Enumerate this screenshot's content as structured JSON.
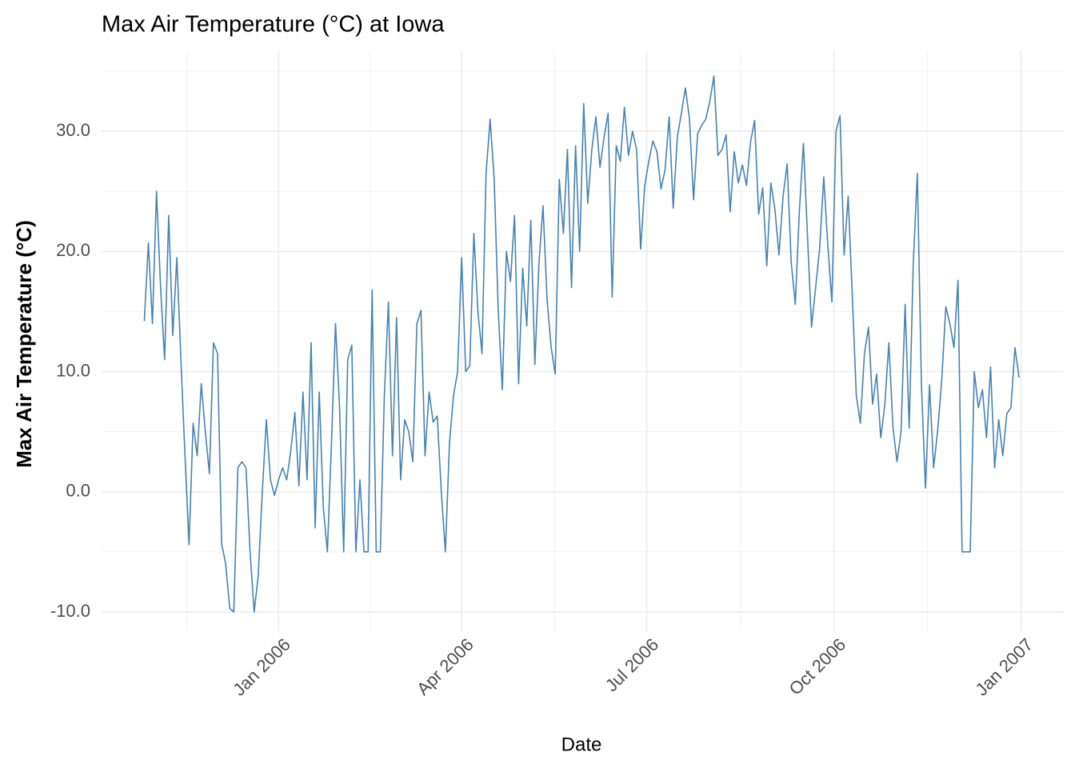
{
  "chart_data": {
    "type": "line",
    "title": "Max Air Temperature (°C) at Iowa",
    "x_label": "Date",
    "y_label": "Max Air Temperature (°C)",
    "color": "#4682b4",
    "grid": true,
    "xlim": [
      "2005-10-06",
      "2007-01-22"
    ],
    "xticks": [
      {
        "value": "2006-01-01",
        "label": "Jan 2006"
      },
      {
        "value": "2006-04-01",
        "label": "Apr 2006"
      },
      {
        "value": "2006-07-01",
        "label": "Jul 2006"
      },
      {
        "value": "2006-10-01",
        "label": "Oct 2006"
      },
      {
        "value": "2007-01-01",
        "label": "Jan 2007"
      }
    ],
    "ylim": [
      -11.6,
      35
    ],
    "yticks": [
      {
        "value": -10,
        "label": "-10.0"
      },
      {
        "value": 0,
        "label": "0.0"
      },
      {
        "value": 10,
        "label": "10.0"
      },
      {
        "value": 20,
        "label": "20.0"
      },
      {
        "value": 30,
        "label": "30.0"
      }
    ],
    "x": [
      "2005-10-27",
      "2005-10-29",
      "2005-10-31",
      "2005-11-02",
      "2005-11-04",
      "2005-11-06",
      "2005-11-08",
      "2005-11-10",
      "2005-11-12",
      "2005-11-14",
      "2005-11-16",
      "2005-11-18",
      "2005-11-20",
      "2005-11-22",
      "2005-11-24",
      "2005-11-26",
      "2005-11-28",
      "2005-11-30",
      "2005-12-02",
      "2005-12-04",
      "2005-12-06",
      "2005-12-08",
      "2005-12-10",
      "2005-12-12",
      "2005-12-14",
      "2005-12-16",
      "2005-12-18",
      "2005-12-20",
      "2005-12-22",
      "2005-12-24",
      "2005-12-26",
      "2005-12-28",
      "2005-12-30",
      "2006-01-01",
      "2006-01-03",
      "2006-01-05",
      "2006-01-07",
      "2006-01-09",
      "2006-01-11",
      "2006-01-13",
      "2006-01-15",
      "2006-01-17",
      "2006-01-19",
      "2006-01-21",
      "2006-01-23",
      "2006-01-25",
      "2006-01-27",
      "2006-01-29",
      "2006-01-31",
      "2006-02-02",
      "2006-02-04",
      "2006-02-06",
      "2006-02-08",
      "2006-02-10",
      "2006-02-12",
      "2006-02-14",
      "2006-02-16",
      "2006-02-18",
      "2006-02-20",
      "2006-02-22",
      "2006-02-24",
      "2006-02-26",
      "2006-02-28",
      "2006-03-02",
      "2006-03-04",
      "2006-03-06",
      "2006-03-08",
      "2006-03-10",
      "2006-03-12",
      "2006-03-14",
      "2006-03-16",
      "2006-03-18",
      "2006-03-20",
      "2006-03-22",
      "2006-03-24",
      "2006-03-26",
      "2006-03-28",
      "2006-03-30",
      "2006-04-01",
      "2006-04-03",
      "2006-04-05",
      "2006-04-07",
      "2006-04-09",
      "2006-04-11",
      "2006-04-13",
      "2006-04-15",
      "2006-04-17",
      "2006-04-19",
      "2006-04-21",
      "2006-04-23",
      "2006-04-25",
      "2006-04-27",
      "2006-04-29",
      "2006-05-01",
      "2006-05-03",
      "2006-05-05",
      "2006-05-07",
      "2006-05-09",
      "2006-05-11",
      "2006-05-13",
      "2006-05-15",
      "2006-05-17",
      "2006-05-19",
      "2006-05-21",
      "2006-05-23",
      "2006-05-25",
      "2006-05-27",
      "2006-05-29",
      "2006-05-31",
      "2006-06-02",
      "2006-06-04",
      "2006-06-06",
      "2006-06-08",
      "2006-06-10",
      "2006-06-12",
      "2006-06-14",
      "2006-06-16",
      "2006-06-18",
      "2006-06-20",
      "2006-06-22",
      "2006-06-24",
      "2006-06-26",
      "2006-06-28",
      "2006-06-30",
      "2006-07-02",
      "2006-07-04",
      "2006-07-06",
      "2006-07-08",
      "2006-07-10",
      "2006-07-12",
      "2006-07-14",
      "2006-07-16",
      "2006-07-18",
      "2006-07-20",
      "2006-07-22",
      "2006-07-24",
      "2006-07-26",
      "2006-07-28",
      "2006-07-30",
      "2006-08-01",
      "2006-08-03",
      "2006-08-05",
      "2006-08-07",
      "2006-08-09",
      "2006-08-11",
      "2006-08-13",
      "2006-08-15",
      "2006-08-17",
      "2006-08-19",
      "2006-08-21",
      "2006-08-23",
      "2006-08-25",
      "2006-08-27",
      "2006-08-29",
      "2006-08-31",
      "2006-09-02",
      "2006-09-04",
      "2006-09-06",
      "2006-09-08",
      "2006-09-10",
      "2006-09-12",
      "2006-09-14",
      "2006-09-16",
      "2006-09-18",
      "2006-09-20",
      "2006-09-22",
      "2006-09-24",
      "2006-09-26",
      "2006-09-28",
      "2006-09-30",
      "2006-10-02",
      "2006-10-04",
      "2006-10-06",
      "2006-10-08",
      "2006-10-10",
      "2006-10-12",
      "2006-10-14",
      "2006-10-16",
      "2006-10-18",
      "2006-10-20",
      "2006-10-22",
      "2006-10-24",
      "2006-10-26",
      "2006-10-28",
      "2006-10-30",
      "2006-11-01",
      "2006-11-03",
      "2006-11-05",
      "2006-11-07",
      "2006-11-09",
      "2006-11-11",
      "2006-11-13",
      "2006-11-15",
      "2006-11-17",
      "2006-11-19",
      "2006-11-21",
      "2006-11-23",
      "2006-11-25",
      "2006-11-27",
      "2006-11-29",
      "2006-12-01",
      "2006-12-03",
      "2006-12-05",
      "2006-12-07",
      "2006-12-09",
      "2006-12-11",
      "2006-12-13",
      "2006-12-15",
      "2006-12-17",
      "2006-12-19",
      "2006-12-21",
      "2006-12-23",
      "2006-12-25",
      "2006-12-27",
      "2006-12-29",
      "2006-12-31"
    ],
    "values": [
      14.2,
      20.7,
      14,
      25,
      17,
      11,
      23,
      13,
      19.5,
      11,
      3,
      -4.4,
      5.7,
      3,
      9,
      5,
      1.5,
      12.4,
      11.5,
      -4.3,
      -6,
      -9.7,
      -10,
      2,
      2.5,
      2,
      -5,
      -10,
      -7,
      0,
      6,
      1,
      -0.3,
      1,
      2,
      1,
      3.4,
      6.6,
      0.5,
      8.3,
      1,
      12.4,
      -3,
      8.3,
      -1.3,
      -5,
      4,
      14,
      7,
      -5,
      11,
      12.2,
      -5,
      1,
      -5,
      -5,
      16.8,
      -5,
      -5,
      8,
      15.8,
      3,
      14.5,
      1,
      6,
      5,
      2.5,
      14,
      15.1,
      3,
      8.3,
      5.8,
      6.3,
      0,
      -5,
      4,
      8,
      10,
      19.5,
      10,
      10.5,
      21.5,
      15,
      11.5,
      26.5,
      31,
      26,
      15,
      8.5,
      20,
      17.5,
      23,
      9,
      18.6,
      13.8,
      22.6,
      10.6,
      19,
      23.8,
      16,
      12,
      9.8,
      26,
      21.5,
      28.5,
      17,
      28.8,
      20,
      32.3,
      24,
      28.5,
      31.2,
      27,
      29.5,
      31.5,
      16.2,
      28.8,
      27.5,
      32,
      28,
      30,
      28.5,
      20.2,
      25.5,
      27.5,
      29.2,
      28.3,
      25.2,
      26.8,
      31.2,
      23.6,
      29.5,
      31.5,
      33.6,
      31,
      24.3,
      29.8,
      30.5,
      31,
      32.5,
      34.6,
      28,
      28.5,
      29.7,
      23.3,
      28.3,
      25.7,
      27.2,
      25.5,
      29.1,
      30.9,
      23.1,
      25.3,
      18.8,
      25.7,
      23.5,
      19.7,
      24.6,
      27.3,
      19.1,
      15.6,
      23.3,
      29,
      21.3,
      13.7,
      17,
      20.3,
      26.2,
      20.5,
      15.8,
      30,
      31.3,
      19.7,
      24.6,
      16.5,
      8,
      5.7,
      11.5,
      13.7,
      7.3,
      9.8,
      4.5,
      7.2,
      12.4,
      5.4,
      2.5,
      5,
      15.6,
      5.3,
      19,
      26.5,
      9,
      0.3,
      8.9,
      2,
      5.1,
      9.3,
      15.4,
      14,
      12,
      17.6,
      -5,
      -5,
      -5,
      10,
      7,
      8.5,
      4.5,
      10.4,
      2,
      6,
      3,
      6.5,
      7,
      12,
      9.5
    ]
  }
}
